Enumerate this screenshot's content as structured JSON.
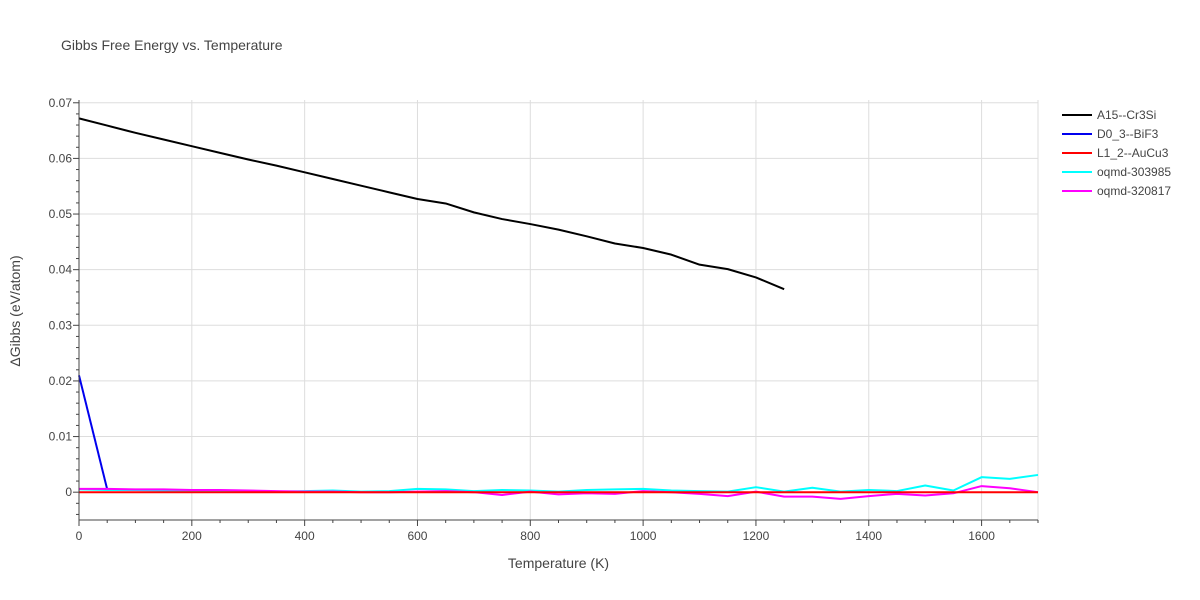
{
  "chart_data": {
    "type": "line",
    "title": "Gibbs Free Energy vs. Temperature",
    "xlabel": "Temperature (K)",
    "ylabel": "ΔGibbs (eV/atom)",
    "xlim": [
      0,
      1700
    ],
    "ylim": [
      -0.005,
      0.0705
    ],
    "x_ticks": [
      0,
      200,
      400,
      600,
      800,
      1000,
      1200,
      1400,
      1600
    ],
    "y_ticks": [
      0,
      0.01,
      0.02,
      0.03,
      0.04,
      0.05,
      0.06,
      0.07
    ],
    "y_tick_labels": [
      "0",
      "0.01",
      "0.02",
      "0.03",
      "0.04",
      "0.05",
      "0.06",
      "0.07"
    ],
    "grid": true,
    "legend_position": "top-right",
    "series": [
      {
        "name": "A15--Cr3Si",
        "color": "#000000",
        "x": [
          0,
          50,
          100,
          150,
          200,
          250,
          300,
          350,
          400,
          450,
          500,
          550,
          600,
          650,
          700,
          750,
          800,
          850,
          900,
          950,
          1000,
          1050,
          1100,
          1150,
          1200,
          1250
        ],
        "y": [
          0.0672,
          0.0659,
          0.0646,
          0.0634,
          0.0622,
          0.061,
          0.0598,
          0.0587,
          0.0575,
          0.0563,
          0.0551,
          0.0539,
          0.0527,
          0.0519,
          0.0503,
          0.0491,
          0.0482,
          0.0472,
          0.046,
          0.0447,
          0.0439,
          0.0427,
          0.0409,
          0.0401,
          0.0386,
          0.0365
        ]
      },
      {
        "name": "D0_3--BiF3",
        "color": "#0000ee",
        "x": [
          0,
          50
        ],
        "y": [
          0.021,
          0.0005
        ]
      },
      {
        "name": "L1_2--AuCu3",
        "color": "#ff0000",
        "x": [
          0,
          100,
          200,
          300,
          400,
          500,
          600,
          700,
          800,
          900,
          1000,
          1100,
          1200,
          1300,
          1400,
          1500,
          1600,
          1700
        ],
        "y": [
          0,
          0,
          0,
          0,
          0,
          0,
          0,
          0,
          0,
          0,
          0,
          0,
          0,
          0,
          0,
          0,
          0,
          0
        ]
      },
      {
        "name": "oqmd-303985",
        "color": "#00ffff",
        "x": [
          0,
          50,
          100,
          150,
          200,
          250,
          300,
          350,
          400,
          450,
          500,
          550,
          600,
          650,
          700,
          750,
          800,
          850,
          900,
          950,
          1000,
          1050,
          1100,
          1150,
          1200,
          1250,
          1300,
          1350,
          1400,
          1450,
          1500,
          1550,
          1600,
          1650,
          1700
        ],
        "y": [
          0.0005,
          0.0004,
          0.0004,
          0.0003,
          0.0003,
          0.0002,
          0.0002,
          0.0001,
          0.0002,
          0.0003,
          0.0001,
          0.0002,
          0.0006,
          0.0005,
          0.0002,
          0.0004,
          0.0003,
          0.0001,
          0.0004,
          0.0005,
          0.0006,
          0.0003,
          0.0002,
          0.0001,
          0.0009,
          0.0001,
          0.0008,
          0.0001,
          0.0004,
          0.0002,
          0.0012,
          0.0003,
          0.0027,
          0.0024,
          0.0031
        ]
      },
      {
        "name": "oqmd-320817",
        "color": "#ff00ff",
        "x": [
          0,
          50,
          100,
          150,
          200,
          250,
          300,
          350,
          400,
          450,
          500,
          550,
          600,
          650,
          700,
          750,
          800,
          850,
          900,
          950,
          1000,
          1050,
          1100,
          1150,
          1200,
          1250,
          1300,
          1350,
          1400,
          1450,
          1500,
          1550,
          1600,
          1650,
          1700
        ],
        "y": [
          0.0006,
          0.0006,
          0.0005,
          0.0005,
          0.0004,
          0.0004,
          0.0003,
          0.0002,
          0.0001,
          0.0001,
          0.0,
          0.0,
          0.0001,
          0.0002,
          0.0,
          -0.0005,
          0.0001,
          -0.0004,
          -0.0002,
          -0.0003,
          0.0002,
          0.0,
          -0.0003,
          -0.0007,
          0.0001,
          -0.0008,
          -0.0008,
          -0.0012,
          -0.0007,
          -0.0003,
          -0.0006,
          -0.0002,
          0.0011,
          0.0007,
          0.0
        ]
      }
    ]
  }
}
